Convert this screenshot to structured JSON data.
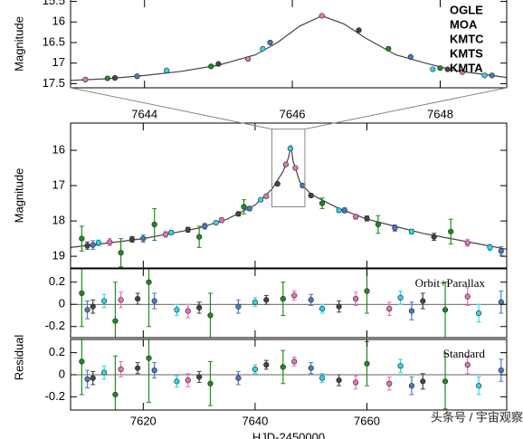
{
  "chart_data": [
    {
      "type": "scatter",
      "y_label": "Magnitude",
      "xlim": [
        7643,
        7648.9
      ],
      "xticks": [
        7644,
        7646,
        7648
      ],
      "ylim": [
        17.6,
        15.4
      ],
      "yticks": [
        15.5,
        16,
        16.5,
        17,
        17.5
      ],
      "legend": "top-right",
      "model": {
        "color": "#444444",
        "x": [
          7643,
          7643.5,
          7644,
          7644.5,
          7645,
          7645.5,
          7645.8,
          7646.1,
          7646.4,
          7646.7,
          7647,
          7647.4,
          7647.8,
          7648.2,
          7648.9
        ],
        "values": [
          17.42,
          17.38,
          17.3,
          17.2,
          17.05,
          16.8,
          16.5,
          16.1,
          15.85,
          16.05,
          16.4,
          16.8,
          17.0,
          17.18,
          17.35
        ]
      },
      "series": [
        {
          "name": "OGLE",
          "color": "#2fd6e3",
          "x": [
            7644.3,
            7645.6,
            7647.9,
            7648.6
          ],
          "values": [
            17.18,
            16.65,
            17.15,
            17.3
          ]
        },
        {
          "name": "MOA",
          "color": "#1e8c1e",
          "x": [
            7643.5,
            7644.9,
            7647.3,
            7648.0
          ],
          "values": [
            17.37,
            17.08,
            16.65,
            17.12
          ]
        },
        {
          "name": "KMTC",
          "color": "#444444",
          "x": [
            7643.6,
            7645.0,
            7646.9,
            7648.1
          ],
          "values": [
            17.36,
            17.02,
            16.2,
            17.15
          ]
        },
        {
          "name": "KMTS",
          "color": "#e374b8",
          "x": [
            7643.2,
            7645.4,
            7646.4,
            7648.3
          ],
          "values": [
            17.4,
            16.9,
            15.85,
            17.22
          ]
        },
        {
          "name": "KMTA",
          "color": "#4a78c8",
          "x": [
            7643.9,
            7645.7,
            7647.6,
            7648.7
          ],
          "values": [
            17.32,
            16.5,
            16.85,
            17.3
          ]
        }
      ]
    },
    {
      "type": "scatter",
      "y_label": "Magnitude",
      "xlim": [
        7607,
        7685
      ],
      "ylim": [
        19.33,
        15.23
      ],
      "yticks": [
        16,
        17,
        18,
        19
      ],
      "model": {
        "color": "#444444",
        "x": [
          7607,
          7615,
          7620,
          7625,
          7630,
          7635,
          7640,
          7643,
          7645,
          7646,
          7646.4,
          7646.8,
          7648,
          7650,
          7655,
          7660,
          7665,
          7670,
          7675,
          7680,
          7685
        ],
        "values": [
          18.75,
          18.6,
          18.5,
          18.35,
          18.2,
          17.95,
          17.55,
          17.1,
          16.6,
          16.2,
          15.85,
          16.3,
          16.9,
          17.25,
          17.65,
          17.95,
          18.15,
          18.35,
          18.5,
          18.65,
          18.8
        ]
      },
      "series": [
        {
          "color": "#2fd6e3",
          "x": [
            7612,
            7625,
            7633,
            7641,
            7646.3,
            7655,
            7668,
            7682
          ],
          "values": [
            18.62,
            18.33,
            18.05,
            17.4,
            15.95,
            17.7,
            18.3,
            18.75
          ],
          "errors": [
            0.08,
            0.06,
            0.05,
            0.04,
            0.02,
            0.05,
            0.07,
            0.09
          ]
        },
        {
          "color": "#1e8c1e",
          "x": [
            7609,
            7616,
            7622,
            7630,
            7638,
            7652,
            7662,
            7675
          ],
          "values": [
            18.5,
            18.9,
            18.1,
            18.45,
            17.6,
            17.5,
            18.1,
            18.3
          ],
          "errors": [
            0.35,
            0.4,
            0.45,
            0.3,
            0.2,
            0.15,
            0.25,
            0.35
          ]
        },
        {
          "color": "#444444",
          "x": [
            7610,
            7618,
            7628,
            7637,
            7644,
            7650,
            7660,
            7672
          ],
          "values": [
            18.7,
            18.52,
            18.25,
            17.8,
            16.95,
            17.28,
            17.93,
            18.45
          ],
          "errors": [
            0.1,
            0.08,
            0.07,
            0.06,
            0.04,
            0.05,
            0.07,
            0.1
          ]
        },
        {
          "color": "#e374b8",
          "x": [
            7614,
            7624,
            7634,
            7642,
            7645.5,
            7647.2,
            7658,
            7678
          ],
          "values": [
            18.6,
            18.38,
            17.98,
            17.3,
            16.4,
            16.5,
            17.88,
            18.62
          ],
          "errors": [
            0.1,
            0.08,
            0.07,
            0.05,
            0.03,
            0.04,
            0.07,
            0.1
          ]
        },
        {
          "color": "#4a78c8",
          "x": [
            7611,
            7620,
            7631,
            7639,
            7648.5,
            7656,
            7665,
            7684
          ],
          "values": [
            18.68,
            18.5,
            18.15,
            17.65,
            17.0,
            17.7,
            18.2,
            18.85
          ],
          "errors": [
            0.12,
            0.1,
            0.08,
            0.06,
            0.05,
            0.07,
            0.09,
            0.12
          ]
        }
      ]
    },
    {
      "type": "scatter",
      "annotation": "Orbit+Parallax",
      "xlim": [
        7607,
        7685
      ],
      "ylim": [
        -0.3,
        0.32
      ],
      "yticks": [
        0.2,
        0,
        -0.2
      ],
      "series": [
        {
          "color": "#2fd6e3",
          "x": [
            7613,
            7626,
            7640,
            7652,
            7666,
            7680
          ],
          "values": [
            0.03,
            -0.05,
            0.02,
            -0.04,
            0.06,
            -0.08
          ],
          "errors": [
            0.06,
            0.05,
            0.04,
            0.04,
            0.06,
            0.08
          ]
        },
        {
          "color": "#1e8c1e",
          "x": [
            7609,
            7615,
            7621,
            7632,
            7645,
            7660,
            7674
          ],
          "values": [
            0.1,
            -0.15,
            0.2,
            -0.1,
            0.05,
            0.12,
            -0.05
          ],
          "errors": [
            0.3,
            0.35,
            0.4,
            0.2,
            0.15,
            0.2,
            0.25
          ]
        },
        {
          "color": "#444444",
          "x": [
            7611,
            7619,
            7630,
            7642,
            7655,
            7670
          ],
          "values": [
            -0.02,
            0.05,
            -0.03,
            0.04,
            -0.02,
            0.03
          ],
          "errors": [
            0.06,
            0.05,
            0.05,
            0.04,
            0.05,
            0.07
          ]
        },
        {
          "color": "#e374b8",
          "x": [
            7616,
            7628,
            7647,
            7658,
            7664,
            7678
          ],
          "values": [
            0.04,
            -0.06,
            0.08,
            0.05,
            -0.04,
            0.07
          ],
          "errors": [
            0.07,
            0.06,
            0.04,
            0.06,
            0.06,
            0.08
          ]
        },
        {
          "color": "#4a78c8",
          "x": [
            7610,
            7622,
            7637,
            7650,
            7668,
            7684
          ],
          "values": [
            -0.05,
            0.03,
            -0.02,
            0.04,
            -0.06,
            0.02
          ],
          "errors": [
            0.08,
            0.07,
            0.06,
            0.05,
            0.08,
            0.1
          ]
        }
      ]
    },
    {
      "type": "scatter",
      "annotation": "Standard",
      "y_label": "Residual",
      "x_label": "HJD-2450000",
      "xlim": [
        7607,
        7685
      ],
      "xticks": [
        7620,
        7640,
        7660
      ],
      "ylim": [
        -0.32,
        0.32
      ],
      "yticks": [
        0.2,
        0,
        -0.2
      ],
      "series": [
        {
          "color": "#2fd6e3",
          "x": [
            7613,
            7626,
            7640,
            7652,
            7666,
            7680
          ],
          "values": [
            0.02,
            -0.06,
            0.05,
            -0.03,
            0.08,
            -0.1
          ],
          "errors": [
            0.06,
            0.05,
            0.04,
            0.04,
            0.06,
            0.08
          ]
        },
        {
          "color": "#1e8c1e",
          "x": [
            7609,
            7615,
            7621,
            7632,
            7645,
            7660,
            7674
          ],
          "values": [
            0.12,
            -0.18,
            0.15,
            -0.08,
            0.07,
            0.1,
            -0.06
          ],
          "errors": [
            0.3,
            0.35,
            0.4,
            0.2,
            0.15,
            0.2,
            0.25
          ]
        },
        {
          "color": "#444444",
          "x": [
            7611,
            7619,
            7630,
            7642,
            7655,
            7670
          ],
          "values": [
            -0.03,
            0.06,
            -0.02,
            0.09,
            -0.05,
            -0.06
          ],
          "errors": [
            0.06,
            0.05,
            0.05,
            0.04,
            0.05,
            0.07
          ]
        },
        {
          "color": "#e374b8",
          "x": [
            7616,
            7628,
            7647,
            7658,
            7664,
            7678
          ],
          "values": [
            0.05,
            -0.05,
            0.12,
            -0.07,
            -0.08,
            0.09
          ],
          "errors": [
            0.07,
            0.06,
            0.04,
            0.06,
            0.06,
            0.08
          ]
        },
        {
          "color": "#4a78c8",
          "x": [
            7610,
            7622,
            7637,
            7650,
            7668,
            7684
          ],
          "values": [
            -0.04,
            0.04,
            -0.03,
            0.06,
            -0.1,
            0.04
          ],
          "errors": [
            0.08,
            0.07,
            0.06,
            0.05,
            0.08,
            0.1
          ]
        }
      ]
    }
  ],
  "watermark": "头条号 / 宇宙观察"
}
